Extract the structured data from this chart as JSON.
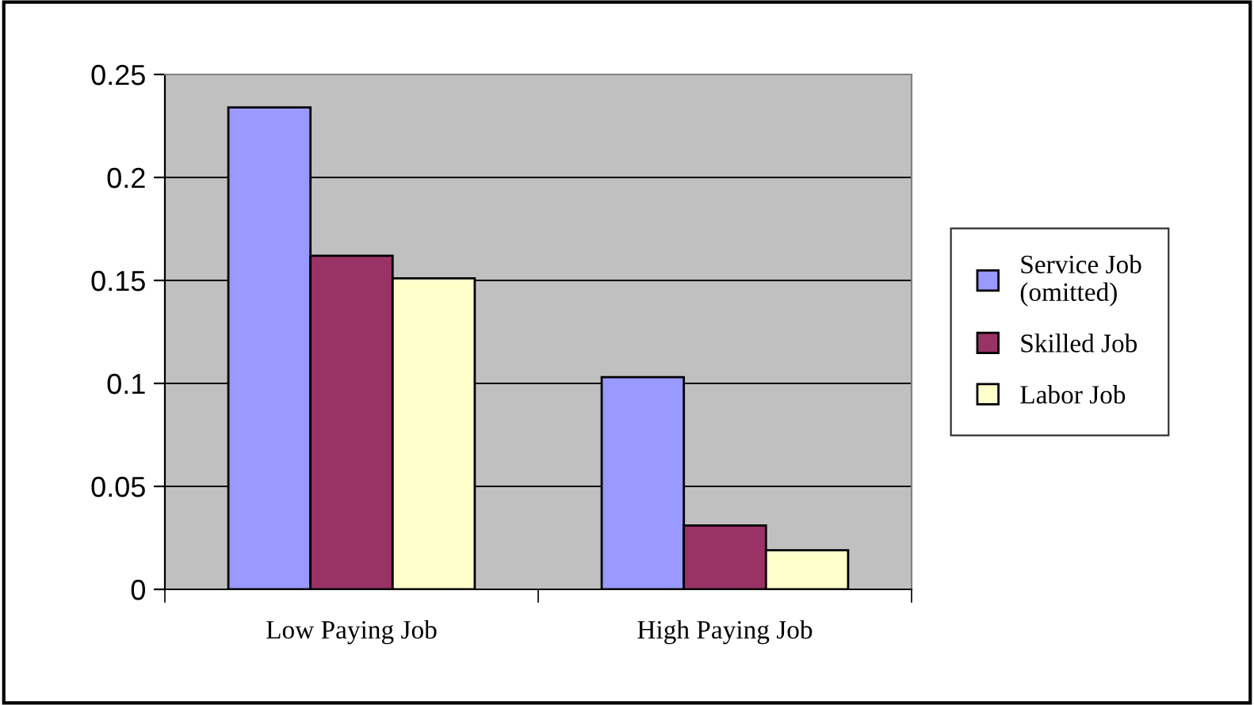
{
  "chart_data": {
    "type": "bar",
    "categories": [
      "Low Paying Job",
      "High Paying Job"
    ],
    "series": [
      {
        "name": "Service Job\n(omitted)",
        "color": "#9999ff",
        "values": [
          0.234,
          0.103
        ]
      },
      {
        "name": "Skilled Job",
        "color": "#993366",
        "values": [
          0.162,
          0.031
        ]
      },
      {
        "name": "Labor Job",
        "color": "#ffffcc",
        "values": [
          0.151,
          0.019
        ]
      }
    ],
    "ylim": [
      0,
      0.25
    ],
    "yticks": [
      0,
      0.05,
      0.1,
      0.15,
      0.2,
      0.25
    ],
    "grid": "y",
    "legend": "right"
  }
}
